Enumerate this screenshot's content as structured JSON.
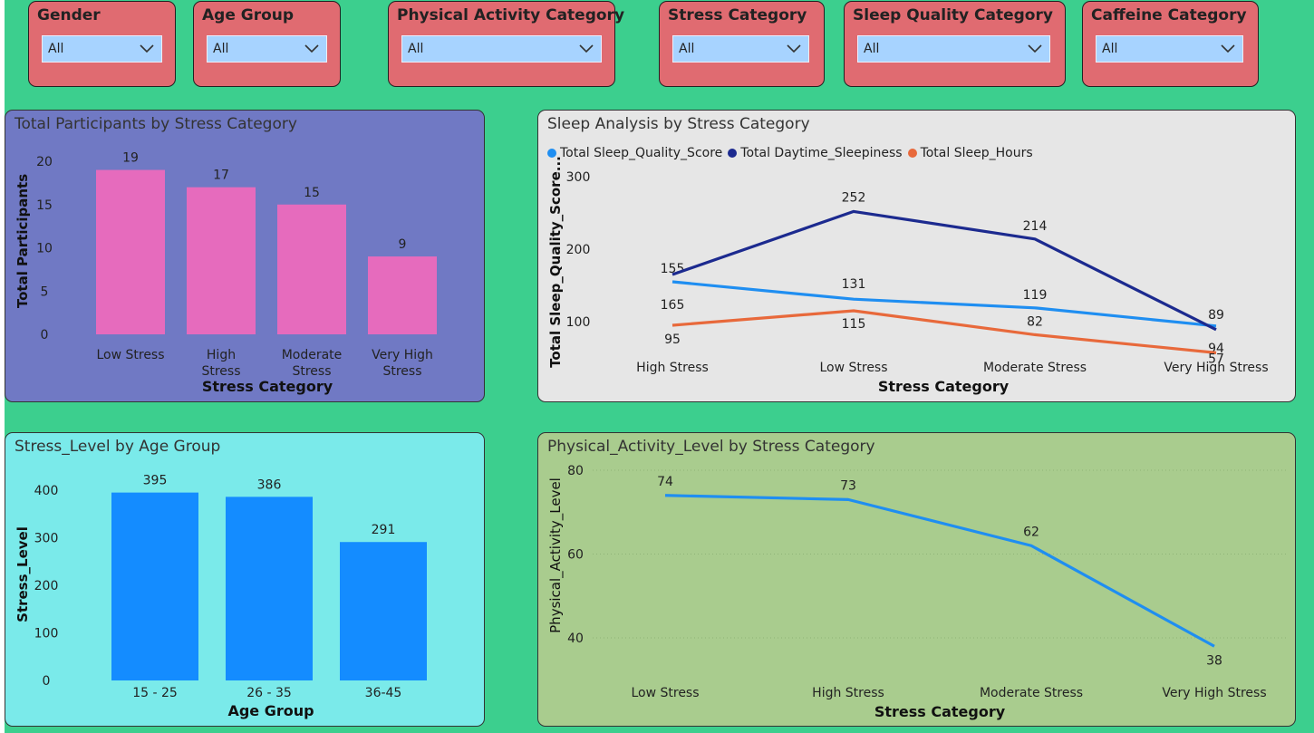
{
  "slicers": [
    {
      "title": "Gender",
      "value": "All"
    },
    {
      "title": "Age Group",
      "value": "All"
    },
    {
      "title": "Physical Activity Category",
      "value": "All"
    },
    {
      "title": "Stress Category",
      "value": "All"
    },
    {
      "title": "Sleep Quality Category",
      "value": "All"
    },
    {
      "title": "Caffeine Category",
      "value": "All"
    }
  ],
  "panels": {
    "participants": {
      "title": "Total Participants by Stress Category",
      "bg": "#7079c4"
    },
    "sleep": {
      "title": "Sleep Analysis by Stress Category",
      "bg": "#e6e6e6"
    },
    "stress_age": {
      "title": "Stress_Level by Age Group",
      "bg": "#7aeaea"
    },
    "activity": {
      "title": "Physical_Activity_Level by Stress Category",
      "bg": "#a9cc8e"
    }
  },
  "chart_data": [
    {
      "id": "participants",
      "type": "bar",
      "title": "Total Participants by Stress Category",
      "categories": [
        "Low Stress",
        "High Stress",
        "Moderate Stress",
        "Very High Stress"
      ],
      "values": [
        19,
        17,
        15,
        9
      ],
      "xlabel": "Stress Category",
      "ylabel": "Total Participants",
      "ylim": [
        0,
        20
      ],
      "yticks": [
        0,
        5,
        10,
        15,
        20
      ],
      "color": "#e66bbd"
    },
    {
      "id": "sleep",
      "type": "line",
      "title": "Sleep Analysis by Stress Category",
      "categories": [
        "High Stress",
        "Low Stress",
        "Moderate Stress",
        "Very High Stress"
      ],
      "series": [
        {
          "name": "Total Sleep_Quality_Score",
          "values": [
            155,
            131,
            119,
            94
          ],
          "color": "#1f8ef1"
        },
        {
          "name": "Total Daytime_Sleepiness",
          "values": [
            165,
            252,
            214,
            89
          ],
          "color": "#1c2a8f"
        },
        {
          "name": "Total Sleep_Hours",
          "values": [
            95,
            115,
            82,
            57
          ],
          "color": "#e8693b"
        }
      ],
      "xlabel": "Stress Category",
      "ylabel": "Total Sleep_Quality_Score...",
      "ylim": [
        45,
        300
      ],
      "yticks": [
        100,
        200,
        300
      ]
    },
    {
      "id": "stress_age",
      "type": "bar",
      "title": "Stress_Level by Age Group",
      "categories": [
        "15 - 25",
        "26 - 35",
        "36-45"
      ],
      "values": [
        395,
        386,
        291
      ],
      "xlabel": "Age Group",
      "ylabel": "Stress_Level",
      "ylim": [
        0,
        400
      ],
      "yticks": [
        0,
        100,
        200,
        300,
        400
      ],
      "color": "#148cff"
    },
    {
      "id": "activity",
      "type": "line",
      "title": "Physical_Activity_Level by Stress Category",
      "categories": [
        "Low Stress",
        "High Stress",
        "Moderate Stress",
        "Very High Stress"
      ],
      "series": [
        {
          "name": "Physical_Activity_Level",
          "values": [
            74,
            73,
            62,
            38
          ],
          "color": "#1f8ef1"
        }
      ],
      "xlabel": "Stress Category",
      "ylabel": "Physical_Activity_Level",
      "ylim": [
        32,
        80
      ],
      "yticks": [
        40,
        60,
        80
      ]
    }
  ]
}
